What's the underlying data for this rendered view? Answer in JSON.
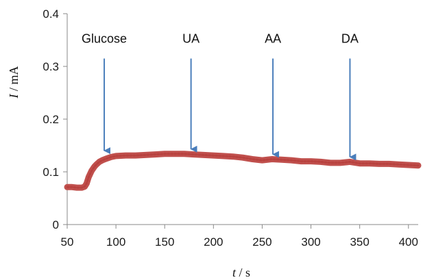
{
  "chart_data": {
    "type": "line",
    "xlabel_var": "t",
    "xlabel_unit": " / s",
    "ylabel_var": "I",
    "ylabel_unit": " / mA",
    "xlim": [
      50,
      410
    ],
    "ylim": [
      0,
      0.4
    ],
    "xticks": [
      50,
      100,
      150,
      200,
      250,
      300,
      350,
      400
    ],
    "yticks": [
      0,
      0.1,
      0.2,
      0.3,
      0.4
    ],
    "ytick_labels": [
      "0",
      "0.1",
      "0.2",
      "0.3",
      "0.4"
    ],
    "grid": false,
    "series": [
      {
        "color": "#c0504d",
        "x": [
          50,
          55,
          60,
          65,
          68,
          70,
          72,
          75,
          78,
          80,
          83,
          86,
          90,
          95,
          100,
          110,
          120,
          130,
          140,
          150,
          160,
          170,
          180,
          190,
          200,
          210,
          220,
          230,
          240,
          250,
          260,
          270,
          280,
          290,
          300,
          310,
          320,
          330,
          340,
          350,
          360,
          370,
          380,
          390,
          400,
          410
        ],
        "y": [
          0.071,
          0.071,
          0.07,
          0.07,
          0.072,
          0.078,
          0.09,
          0.102,
          0.11,
          0.114,
          0.119,
          0.122,
          0.125,
          0.128,
          0.13,
          0.131,
          0.131,
          0.132,
          0.133,
          0.134,
          0.134,
          0.134,
          0.133,
          0.132,
          0.131,
          0.13,
          0.129,
          0.127,
          0.124,
          0.122,
          0.124,
          0.123,
          0.122,
          0.12,
          0.12,
          0.119,
          0.117,
          0.117,
          0.119,
          0.116,
          0.116,
          0.115,
          0.115,
          0.114,
          0.113,
          0.112
        ]
      }
    ],
    "annotations": [
      {
        "text": "Glucose",
        "x": 88,
        "y": 0.131
      },
      {
        "text": "UA",
        "x": 177,
        "y": 0.134
      },
      {
        "text": "AA",
        "x": 261,
        "y": 0.124
      },
      {
        "text": "DA",
        "x": 340,
        "y": 0.119
      }
    ],
    "annotation_color": "#4a7ebb",
    "annotation_label_y": 0.345,
    "annotation_arrow_top_y": 0.315
  }
}
